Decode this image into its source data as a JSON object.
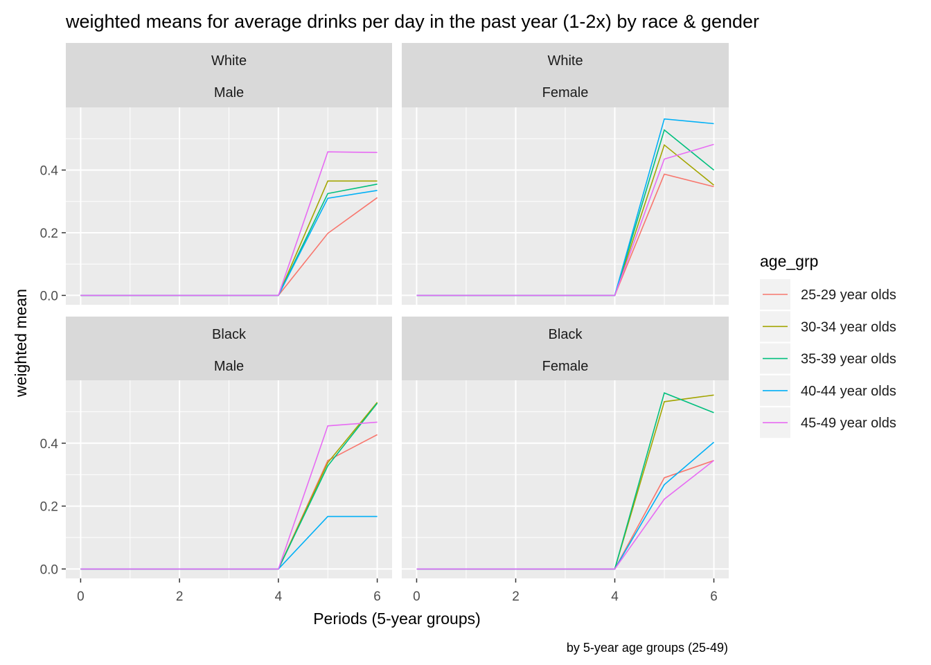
{
  "chart_data": {
    "type": "line",
    "title": "weighted means for average drinks per day in the past year (1-2x) by race & gender",
    "caption": "by 5-year age groups (25-49)",
    "xlabel": "Periods (5-year groups)",
    "ylabel": "weighted mean",
    "x": [
      0,
      1,
      2,
      3,
      4,
      5,
      6
    ],
    "xticks": [
      "0",
      "2",
      "4",
      "6"
    ],
    "yticks": [
      "0.0",
      "0.2",
      "0.4"
    ],
    "grid": true,
    "legend": {
      "title": "age_grp",
      "position": "right",
      "entries": [
        "25-29 year olds",
        "30-34 year olds",
        "35-39 year olds",
        "40-44 year olds",
        "45-49 year olds"
      ],
      "colors": [
        "#F8766D",
        "#A3A500",
        "#00BF7D",
        "#00B0F6",
        "#E76BF3"
      ]
    },
    "panels": [
      {
        "race": "White",
        "gender": "Male",
        "series": [
          {
            "name": "25-29 year olds",
            "values": [
              0,
              0,
              0,
              0,
              0,
              0.198,
              0.312
            ]
          },
          {
            "name": "30-34 year olds",
            "values": [
              0,
              0,
              0,
              0,
              0,
              0.365,
              0.365
            ]
          },
          {
            "name": "35-39 year olds",
            "values": [
              0,
              0,
              0,
              0,
              0,
              0.325,
              0.355
            ]
          },
          {
            "name": "40-44 year olds",
            "values": [
              0,
              0,
              0,
              0,
              0,
              0.31,
              0.335
            ]
          },
          {
            "name": "45-49 year olds",
            "values": [
              0,
              0,
              0,
              0,
              0,
              0.458,
              0.456
            ]
          }
        ]
      },
      {
        "race": "White",
        "gender": "Female",
        "series": [
          {
            "name": "25-29 year olds",
            "values": [
              0,
              0,
              0,
              0,
              0,
              0.387,
              0.347
            ]
          },
          {
            "name": "30-34 year olds",
            "values": [
              0,
              0,
              0,
              0,
              0,
              0.48,
              0.352
            ]
          },
          {
            "name": "35-39 year olds",
            "values": [
              0,
              0,
              0,
              0,
              0,
              0.528,
              0.4
            ]
          },
          {
            "name": "40-44 year olds",
            "values": [
              0,
              0,
              0,
              0,
              0,
              0.563,
              0.548
            ]
          },
          {
            "name": "45-49 year olds",
            "values": [
              0,
              0,
              0,
              0,
              0,
              0.435,
              0.482
            ]
          }
        ]
      },
      {
        "race": "Black",
        "gender": "Male",
        "series": [
          {
            "name": "25-29 year olds",
            "values": [
              0,
              0,
              0,
              0,
              0,
              0.345,
              0.427
            ]
          },
          {
            "name": "30-34 year olds",
            "values": [
              0,
              0,
              0,
              0,
              0,
              0.338,
              0.53
            ]
          },
          {
            "name": "35-39 year olds",
            "values": [
              0,
              0,
              0,
              0,
              0,
              0.328,
              0.527
            ]
          },
          {
            "name": "40-44 year olds",
            "values": [
              0,
              0,
              0,
              0,
              0,
              0.167,
              0.167
            ]
          },
          {
            "name": "45-49 year olds",
            "values": [
              0,
              0,
              0,
              0,
              0,
              0.455,
              0.467
            ]
          }
        ]
      },
      {
        "race": "Black",
        "gender": "Female",
        "series": [
          {
            "name": "25-29 year olds",
            "values": [
              0,
              0,
              0,
              0,
              0,
              0.29,
              0.345
            ]
          },
          {
            "name": "30-34 year olds",
            "values": [
              0,
              0,
              0,
              0,
              0,
              0.532,
              0.553
            ]
          },
          {
            "name": "35-39 year olds",
            "values": [
              0,
              0,
              0,
              0,
              0,
              0.56,
              0.497
            ]
          },
          {
            "name": "40-44 year olds",
            "values": [
              0,
              0,
              0,
              0,
              0,
              0.268,
              0.403
            ]
          },
          {
            "name": "45-49 year olds",
            "values": [
              0,
              0,
              0,
              0,
              0,
              0.222,
              0.345
            ]
          }
        ]
      }
    ],
    "xlim": [
      -0.3,
      6.3
    ],
    "ylim": [
      -0.03,
      0.6
    ]
  }
}
